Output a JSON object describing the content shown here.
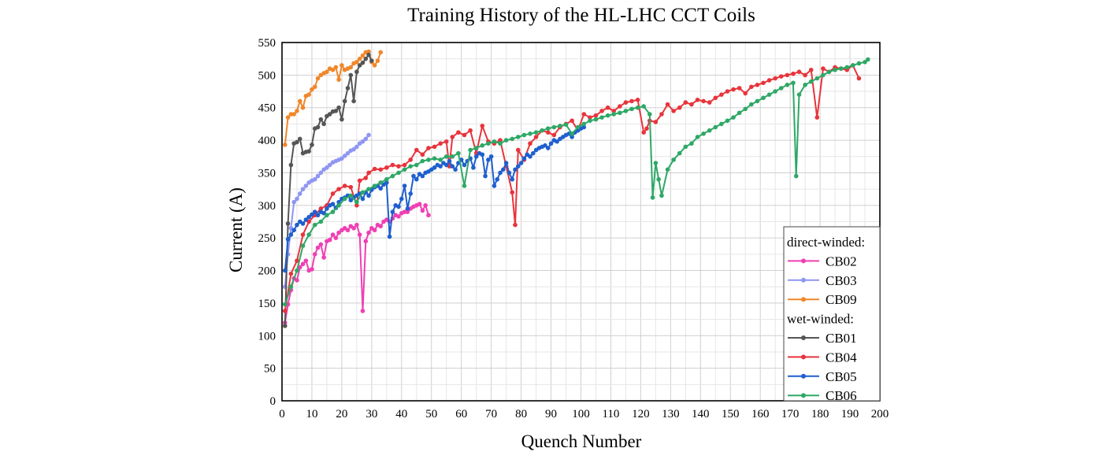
{
  "chart_data": {
    "type": "line",
    "title": "Training History of the HL-LHC CCT Coils",
    "xlabel": "Quench Number",
    "ylabel": "Current (A)",
    "xlim": [
      0,
      200
    ],
    "ylim": [
      0,
      550
    ],
    "xticks": [
      0,
      10,
      20,
      30,
      40,
      50,
      60,
      70,
      80,
      90,
      100,
      110,
      120,
      130,
      140,
      150,
      160,
      170,
      180,
      190,
      200
    ],
    "yticks": [
      0,
      50,
      100,
      150,
      200,
      250,
      300,
      350,
      400,
      450,
      500,
      550
    ],
    "grid": true,
    "legend_position": "bottom-right",
    "legend_groups": [
      {
        "label": "direct-winded:",
        "series": [
          "CB02",
          "CB03",
          "CB09"
        ]
      },
      {
        "label": "wet-winded:",
        "series": [
          "CB01",
          "CB04",
          "CB05",
          "CB06"
        ]
      }
    ],
    "series": [
      {
        "name": "CB02",
        "color": "#f03fb4",
        "x": [
          1,
          2,
          3,
          4,
          5,
          6,
          7,
          8,
          9,
          10,
          11,
          12,
          13,
          14,
          15,
          16,
          17,
          18,
          19,
          20,
          21,
          22,
          23,
          24,
          25,
          26,
          27,
          28,
          29,
          30,
          31,
          32,
          33,
          34,
          35,
          36,
          37,
          38,
          39,
          40,
          41,
          42,
          43,
          44,
          45,
          46,
          47,
          48,
          49
        ],
        "y": [
          120,
          148,
          170,
          188,
          185,
          205,
          210,
          215,
          200,
          202,
          225,
          235,
          240,
          220,
          245,
          247,
          255,
          250,
          258,
          262,
          265,
          262,
          268,
          265,
          270,
          255,
          138,
          245,
          258,
          265,
          262,
          270,
          268,
          275,
          278,
          275,
          280,
          285,
          283,
          288,
          290,
          290,
          295,
          298,
          300,
          302,
          292,
          300,
          285
        ]
      },
      {
        "name": "CB03",
        "color": "#8f96f2",
        "x": [
          1,
          2,
          3,
          4,
          5,
          6,
          7,
          8,
          9,
          10,
          11,
          12,
          13,
          14,
          15,
          16,
          17,
          18,
          19,
          20,
          21,
          22,
          23,
          24,
          25,
          26,
          27,
          28,
          29
        ],
        "y": [
          175,
          225,
          265,
          305,
          310,
          318,
          325,
          330,
          335,
          338,
          340,
          345,
          350,
          355,
          358,
          362,
          366,
          368,
          370,
          372,
          376,
          380,
          384,
          386,
          390,
          395,
          398,
          402,
          408
        ]
      },
      {
        "name": "CB09",
        "color": "#f0872a",
        "x": [
          1,
          2,
          3,
          4,
          5,
          6,
          7,
          8,
          9,
          10,
          11,
          12,
          13,
          14,
          15,
          16,
          17,
          18,
          19,
          20,
          21,
          22,
          23,
          24,
          25,
          26,
          27,
          28,
          29,
          30,
          31,
          32,
          33
        ],
        "y": [
          393,
          435,
          440,
          440,
          445,
          460,
          450,
          468,
          470,
          478,
          482,
          495,
          500,
          503,
          505,
          510,
          508,
          512,
          493,
          515,
          508,
          510,
          512,
          518,
          520,
          525,
          530,
          535,
          536,
          520,
          515,
          522,
          535
        ]
      },
      {
        "name": "CB01",
        "color": "#555555",
        "x": [
          1,
          2,
          3,
          4,
          5,
          6,
          7,
          8,
          9,
          10,
          11,
          12,
          13,
          14,
          15,
          16,
          17,
          18,
          19,
          20,
          21,
          22,
          23,
          24,
          25,
          26,
          27,
          28,
          29,
          30
        ],
        "y": [
          115,
          272,
          362,
          395,
          397,
          402,
          380,
          382,
          383,
          393,
          418,
          420,
          432,
          425,
          437,
          440,
          444,
          445,
          450,
          432,
          460,
          480,
          500,
          460,
          505,
          515,
          519,
          525,
          531,
          522
        ]
      },
      {
        "name": "CB04",
        "color": "#e8343c",
        "x": [
          1,
          3,
          5,
          7,
          9,
          11,
          13,
          15,
          17,
          19,
          21,
          23,
          25,
          26,
          28,
          29,
          31,
          33,
          35,
          37,
          39,
          41,
          43,
          45,
          47,
          49,
          51,
          53,
          55,
          56,
          57,
          59,
          61,
          63,
          65,
          67,
          69,
          71,
          73,
          75,
          77,
          78,
          79,
          81,
          83,
          85,
          87,
          89,
          91,
          93,
          95,
          97,
          99,
          101,
          103,
          105,
          107,
          109,
          111,
          113,
          115,
          117,
          119,
          121,
          122,
          123,
          125,
          127,
          129,
          131,
          133,
          135,
          137,
          139,
          141,
          143,
          145,
          147,
          149,
          151,
          153,
          155,
          157,
          159,
          161,
          163,
          165,
          167,
          169,
          171,
          173,
          175,
          177,
          179,
          181,
          183,
          185,
          187,
          189,
          191,
          193
        ],
        "y": [
          138,
          195,
          215,
          255,
          275,
          285,
          295,
          300,
          318,
          325,
          330,
          328,
          300,
          338,
          342,
          350,
          356,
          355,
          358,
          362,
          360,
          362,
          370,
          385,
          378,
          388,
          390,
          395,
          398,
          360,
          405,
          412,
          408,
          415,
          380,
          422,
          398,
          395,
          400,
          360,
          320,
          270,
          385,
          370,
          395,
          405,
          415,
          412,
          408,
          420,
          425,
          430,
          415,
          440,
          435,
          438,
          445,
          450,
          445,
          452,
          458,
          460,
          462,
          412,
          418,
          430,
          428,
          440,
          455,
          445,
          450,
          458,
          455,
          462,
          460,
          458,
          465,
          470,
          475,
          478,
          480,
          472,
          482,
          485,
          488,
          492,
          495,
          498,
          500,
          502,
          505,
          500,
          508,
          435,
          510,
          505,
          512,
          510,
          508,
          515,
          495
        ]
      },
      {
        "name": "CB05",
        "color": "#1f5fcf",
        "x": [
          1,
          2,
          3,
          4,
          5,
          6,
          7,
          8,
          9,
          10,
          11,
          12,
          13,
          14,
          15,
          16,
          17,
          18,
          19,
          20,
          21,
          22,
          23,
          24,
          25,
          26,
          27,
          28,
          29,
          30,
          31,
          32,
          33,
          34,
          35,
          36,
          37,
          38,
          39,
          40,
          41,
          42,
          43,
          44,
          45,
          46,
          47,
          48,
          49,
          50,
          51,
          52,
          53,
          54,
          55,
          56,
          57,
          58,
          59,
          60,
          61,
          62,
          63,
          64,
          65,
          66,
          67,
          68,
          69,
          70,
          71,
          72,
          73,
          74,
          75,
          76,
          77,
          78,
          79,
          80,
          81,
          82,
          83,
          84,
          85,
          86,
          87,
          88,
          89,
          90,
          91,
          92,
          93,
          94,
          95,
          96,
          97,
          98,
          99,
          100,
          101
        ],
        "y": [
          200,
          248,
          255,
          262,
          270,
          275,
          272,
          278,
          282,
          286,
          290,
          285,
          290,
          288,
          295,
          300,
          302,
          296,
          305,
          310,
          312,
          315,
          308,
          312,
          315,
          318,
          310,
          320,
          315,
          324,
          328,
          330,
          326,
          332,
          335,
          252,
          290,
          300,
          298,
          310,
          330,
          295,
          318,
          345,
          340,
          348,
          345,
          350,
          352,
          355,
          358,
          362,
          360,
          365,
          362,
          368,
          360,
          355,
          365,
          370,
          362,
          368,
          372,
          358,
          375,
          380,
          378,
          345,
          370,
          375,
          330,
          340,
          350,
          355,
          365,
          350,
          340,
          355,
          360,
          365,
          372,
          378,
          375,
          380,
          385,
          388,
          390,
          392,
          388,
          395,
          400,
          398,
          402,
          405,
          408,
          410,
          405,
          412,
          415,
          418,
          420
        ]
      },
      {
        "name": "CB06",
        "color": "#2ea866",
        "x": [
          1,
          3,
          5,
          7,
          9,
          11,
          13,
          15,
          17,
          19,
          21,
          23,
          25,
          27,
          29,
          31,
          33,
          35,
          37,
          39,
          41,
          43,
          45,
          47,
          49,
          51,
          53,
          55,
          57,
          59,
          61,
          63,
          65,
          67,
          69,
          71,
          73,
          75,
          77,
          79,
          81,
          83,
          85,
          87,
          89,
          91,
          93,
          95,
          97,
          99,
          101,
          103,
          105,
          107,
          109,
          111,
          113,
          115,
          117,
          119,
          121,
          123,
          124,
          125,
          126,
          127,
          129,
          131,
          133,
          135,
          137,
          139,
          141,
          143,
          145,
          147,
          149,
          151,
          153,
          155,
          157,
          159,
          161,
          163,
          165,
          167,
          169,
          171,
          172,
          173,
          175,
          177,
          179,
          181,
          183,
          185,
          187,
          189,
          191,
          193,
          195,
          196
        ],
        "y": [
          148,
          175,
          200,
          238,
          255,
          270,
          275,
          285,
          290,
          300,
          310,
          315,
          305,
          320,
          325,
          330,
          335,
          340,
          345,
          350,
          355,
          360,
          362,
          368,
          370,
          372,
          370,
          375,
          375,
          380,
          330,
          385,
          388,
          392,
          395,
          398,
          395,
          400,
          402,
          405,
          408,
          410,
          412,
          415,
          418,
          420,
          422,
          424,
          410,
          420,
          425,
          430,
          432,
          435,
          438,
          440,
          442,
          445,
          448,
          450,
          452,
          440,
          312,
          365,
          340,
          315,
          355,
          370,
          380,
          390,
          395,
          405,
          410,
          415,
          420,
          425,
          430,
          435,
          442,
          448,
          455,
          460,
          465,
          470,
          475,
          480,
          485,
          488,
          345,
          470,
          485,
          490,
          495,
          500,
          505,
          508,
          510,
          512,
          515,
          518,
          520,
          524
        ]
      }
    ]
  }
}
